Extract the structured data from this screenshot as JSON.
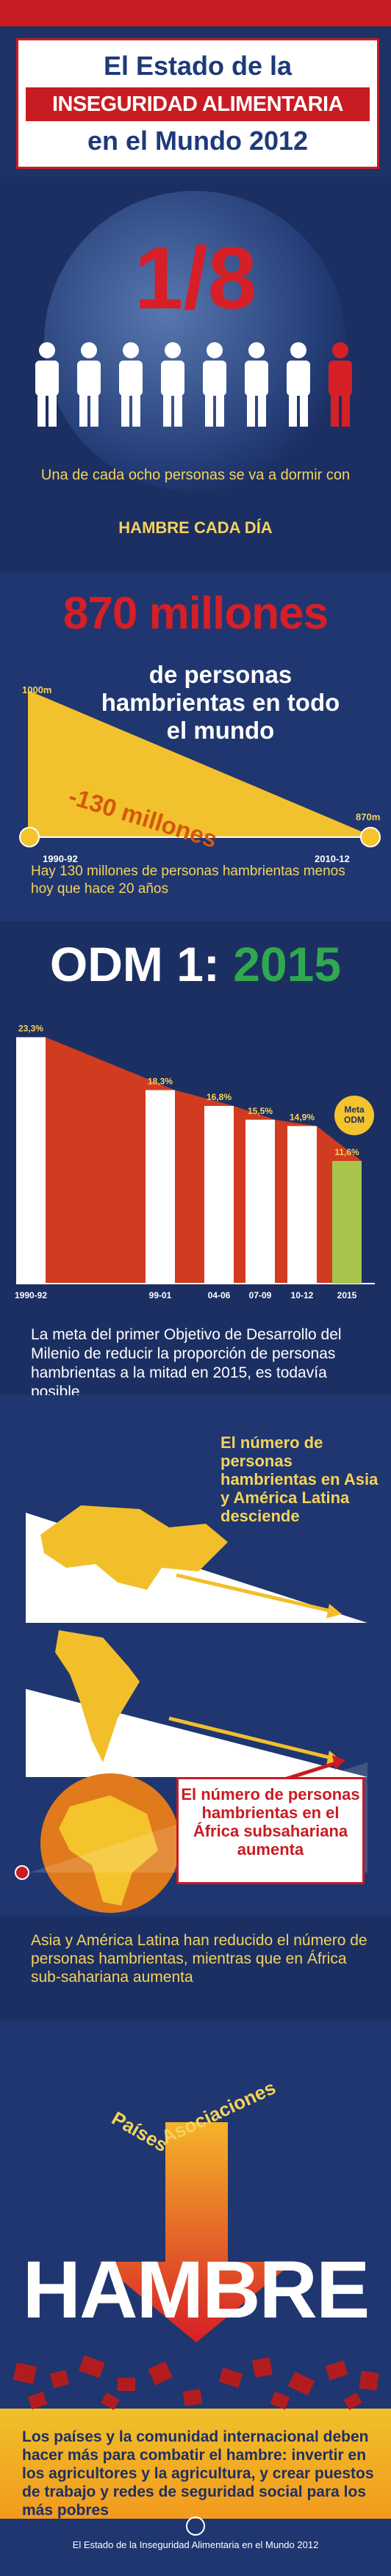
{
  "title": {
    "line1": "El Estado de la",
    "line2": "INSEGURIDAD ALIMENTARIA",
    "line3": "en el Mundo 2012"
  },
  "fraction": {
    "value": "1/8",
    "people_total": 8,
    "people_highlighted": 1,
    "description": "Una de cada ocho personas se va a dormir con",
    "emphasis": "HAMBRE CADA DÍA"
  },
  "hunger": {
    "headline": "870 millones",
    "subheadline": "de personas hambrientas en todo el mundo",
    "start_label": "1000m",
    "end_label": "870m",
    "start_period": "1990-92",
    "end_period": "2010-12",
    "change_label": "-130 millones",
    "note": "Hay 130 millones de personas hambrientas menos hoy que hace 20 años"
  },
  "chart_data": {
    "type": "bar",
    "title": "ODM 1: 2015",
    "title_prefix": "ODM 1:",
    "title_year": "2015",
    "categories": [
      "1990-92",
      "99-01",
      "04-06",
      "07-09",
      "10-12",
      "2015"
    ],
    "values": [
      23.3,
      18.3,
      16.8,
      15.5,
      14.9,
      11.6
    ],
    "value_labels": [
      "23,3%",
      "18,3%",
      "16,8%",
      "15,5%",
      "14,9%",
      "11,6%"
    ],
    "target_label": "Meta ODM",
    "target_category": "2015",
    "ylim": [
      0,
      25
    ],
    "note": "La meta del primer Objetivo de Desarrollo del Milenio de reducir la proporción de personas hambrientas a la mitad en 2015, es todavía posible"
  },
  "regions": {
    "asia_latam": "El número de personas hambrientas en Asia y América Latina desciende",
    "africa": "El número de personas hambrientas en el África subsahariana aumenta",
    "note": "Asia y América Latina han reducido el número de personas hambrientas, mientras que en África sub-sahariana aumenta"
  },
  "action": {
    "word1": "Países",
    "word2": "Asociaciones",
    "hunger_word": "HAMBRE",
    "call": "Los países y la comunidad internacional deben hacer más para combatir el hambre: invertir en los agricultores y la agricultura, y crear puestos de trabajo y redes de seguridad social para los más pobres",
    "footer": "El Estado de la Inseguridad Alimentaria en el Mundo 2012"
  },
  "colors": {
    "red": "#d61f26",
    "yellow": "#f5d35a",
    "navy": "#1c2f63",
    "green": "#2fa84f"
  }
}
